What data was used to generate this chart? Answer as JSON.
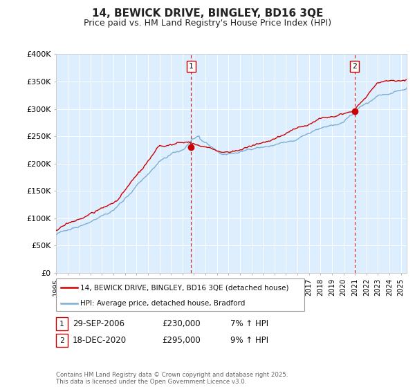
{
  "title": "14, BEWICK DRIVE, BINGLEY, BD16 3QE",
  "subtitle": "Price paid vs. HM Land Registry's House Price Index (HPI)",
  "ylim": [
    0,
    400000
  ],
  "yticks": [
    0,
    50000,
    100000,
    150000,
    200000,
    250000,
    300000,
    350000,
    400000
  ],
  "ytick_labels": [
    "£0",
    "£50K",
    "£100K",
    "£150K",
    "£200K",
    "£250K",
    "£300K",
    "£350K",
    "£400K"
  ],
  "line_color_red": "#cc0000",
  "line_color_blue": "#7bafd4",
  "bg_color": "#ddeeff",
  "grid_color": "#ffffff",
  "sale1_price": 230000,
  "sale1_price_str": "£230,000",
  "sale1_pct": "7%",
  "sale1_x": 2006.75,
  "sale2_price": 295000,
  "sale2_price_str": "£295,000",
  "sale2_pct": "9%",
  "sale2_x": 2020.96,
  "sale1_date_label": "29-SEP-2006",
  "sale2_date_label": "18-DEC-2020",
  "legend_line1": "14, BEWICK DRIVE, BINGLEY, BD16 3QE (detached house)",
  "legend_line2": "HPI: Average price, detached house, Bradford",
  "footer": "Contains HM Land Registry data © Crown copyright and database right 2025.\nThis data is licensed under the Open Government Licence v3.0.",
  "title_fontsize": 11,
  "subtitle_fontsize": 9,
  "tick_fontsize": 8
}
